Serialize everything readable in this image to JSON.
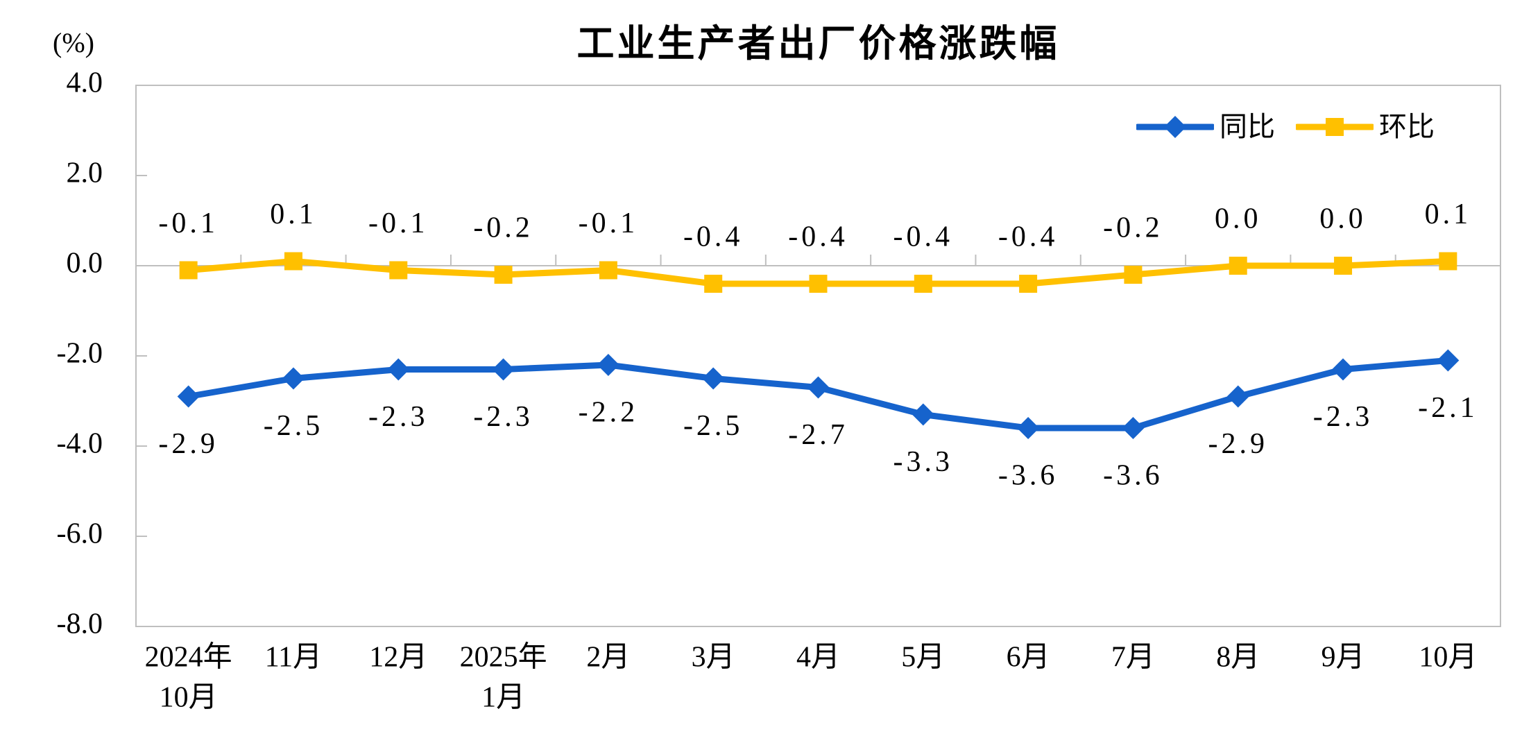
{
  "chart_data": {
    "type": "line",
    "title": "工业生产者出厂价格涨跌幅",
    "unit_label": "(%)",
    "xlabel": "",
    "ylabel": "(%)",
    "ylim": [
      -8.0,
      4.0
    ],
    "y_tick_step": 2.0,
    "y_ticks": [
      "4.0",
      "2.0",
      "0.0",
      "-2.0",
      "-4.0",
      "-6.0",
      "-8.0"
    ],
    "grid": false,
    "legend_position": "top-right",
    "categories": [
      [
        "2024年",
        "10月"
      ],
      [
        "11月"
      ],
      [
        "12月"
      ],
      [
        "2025年",
        "1月"
      ],
      [
        "2月"
      ],
      [
        "3月"
      ],
      [
        "4月"
      ],
      [
        "5月"
      ],
      [
        "6月"
      ],
      [
        "7月"
      ],
      [
        "8月"
      ],
      [
        "9月"
      ],
      [
        "10月"
      ]
    ],
    "series": [
      {
        "name": "同比",
        "color": "#1663CC",
        "marker": "diamond",
        "label_position": "below",
        "values": [
          -2.9,
          -2.5,
          -2.3,
          -2.3,
          -2.2,
          -2.5,
          -2.7,
          -3.3,
          -3.6,
          -3.6,
          -2.9,
          -2.3,
          -2.1
        ],
        "labels": [
          "-2.9",
          "-2.5",
          "-2.3",
          "-2.3",
          "-2.2",
          "-2.5",
          "-2.7",
          "-3.3",
          "-3.6",
          "-3.6",
          "-2.9",
          "-2.3",
          "-2.1"
        ]
      },
      {
        "name": "环比",
        "color": "#FFC000",
        "marker": "square",
        "label_position": "above",
        "values": [
          -0.1,
          0.1,
          -0.1,
          -0.2,
          -0.1,
          -0.4,
          -0.4,
          -0.4,
          -0.4,
          -0.2,
          0.0,
          0.0,
          0.1
        ],
        "labels": [
          "-0.1",
          "0.1",
          "-0.1",
          "-0.2",
          "-0.1",
          "-0.4",
          "-0.4",
          "-0.4",
          "-0.4",
          "-0.2",
          "0.0",
          "0.0",
          "0.1"
        ]
      }
    ],
    "axis_color": "#BFBFBF",
    "text_color": "#000000"
  }
}
